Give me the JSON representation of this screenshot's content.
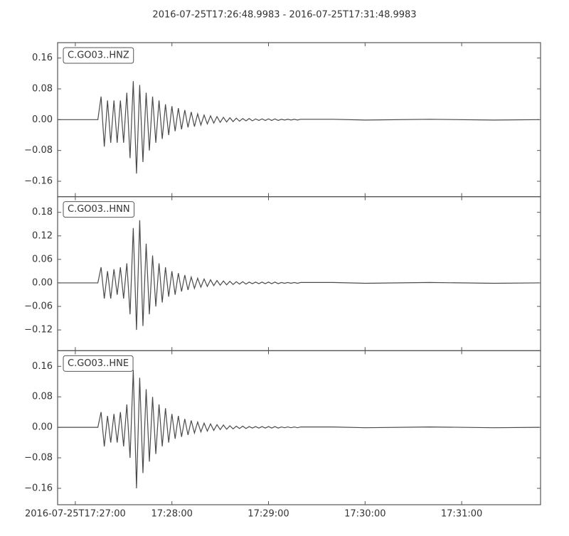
{
  "chart_data": [
    {
      "type": "line",
      "title": "2016-07-25T17:26:48.9983  -  2016-07-25T17:31:48.9983",
      "xlim": [
        62808.9983,
        63108.9983
      ],
      "ylim": [
        -0.2,
        0.2
      ],
      "yticks": [
        {
          "value": -0.16,
          "label": "−0.16"
        },
        {
          "value": -0.08,
          "label": "−0.08"
        },
        {
          "value": 0,
          "label": "0.00"
        },
        {
          "value": 0.08,
          "label": "0.08"
        },
        {
          "value": 0.16,
          "label": "0.16"
        }
      ],
      "x": [
        62809,
        62834,
        62836,
        62838,
        62840,
        62842,
        62844,
        62846,
        62848,
        62850,
        62852,
        62854,
        62856,
        62858,
        62860,
        62862,
        62864,
        62866,
        62868,
        62870,
        62872,
        62874,
        62876,
        62878,
        62880,
        62882,
        62884,
        62886,
        62888,
        62890,
        62892,
        62894,
        62896,
        62898,
        62900,
        62902,
        62904,
        62906,
        62908,
        62910,
        62912,
        62914,
        62916,
        62918,
        62920,
        62922,
        62924,
        62926,
        62928,
        62930,
        62932,
        62934,
        62936,
        62938,
        62940,
        62942,
        62944,
        62946,
        62948,
        62950,
        62952,
        62954,
        62956,
        62958,
        62960,
        62980,
        63000,
        63040,
        63080,
        63108
      ],
      "series": [
        {
          "name": "C.GO03..HNZ",
          "color": "#4a4a4a",
          "values": [
            0,
            0,
            0.06,
            -0.07,
            0.05,
            -0.06,
            0.05,
            -0.06,
            0.05,
            -0.06,
            0.07,
            -0.1,
            0.1,
            -0.14,
            0.09,
            -0.11,
            0.07,
            -0.08,
            0.06,
            -0.06,
            0.05,
            -0.05,
            0.04,
            -0.04,
            0.035,
            -0.03,
            0.03,
            -0.025,
            0.025,
            -0.02,
            0.02,
            -0.018,
            0.015,
            -0.014,
            0.012,
            -0.011,
            0.01,
            -0.009,
            0.008,
            -0.007,
            0.006,
            -0.006,
            0.005,
            -0.005,
            0.004,
            -0.004,
            0.003,
            -0.003,
            0.003,
            -0.003,
            0.002,
            -0.002,
            0.002,
            -0.002,
            0.002,
            -0.002,
            0.002,
            -0.002,
            0.001,
            -0.001,
            0.001,
            -0.001,
            0.001,
            -0.001,
            0.001,
            0.001,
            -0.001,
            0.001,
            -0.001,
            0
          ]
        }
      ]
    },
    {
      "type": "line",
      "xlim": [
        62808.9983,
        63108.9983
      ],
      "ylim": [
        -0.173,
        0.22
      ],
      "yticks": [
        {
          "value": -0.12,
          "label": "−0.12"
        },
        {
          "value": -0.06,
          "label": "−0.06"
        },
        {
          "value": 0,
          "label": "0.00"
        },
        {
          "value": 0.06,
          "label": "0.06"
        },
        {
          "value": 0.12,
          "label": "0.12"
        },
        {
          "value": 0.18,
          "label": "0.18"
        }
      ],
      "x": [
        62809,
        62834,
        62836,
        62838,
        62840,
        62842,
        62844,
        62846,
        62848,
        62850,
        62852,
        62854,
        62856,
        62858,
        62860,
        62862,
        62864,
        62866,
        62868,
        62870,
        62872,
        62874,
        62876,
        62878,
        62880,
        62882,
        62884,
        62886,
        62888,
        62890,
        62892,
        62894,
        62896,
        62898,
        62900,
        62902,
        62904,
        62906,
        62908,
        62910,
        62912,
        62914,
        62916,
        62918,
        62920,
        62922,
        62924,
        62926,
        62928,
        62930,
        62932,
        62934,
        62936,
        62938,
        62940,
        62942,
        62944,
        62946,
        62948,
        62950,
        62952,
        62954,
        62956,
        62958,
        62960,
        62980,
        63000,
        63040,
        63080,
        63108
      ],
      "series": [
        {
          "name": "C.GO03..HNN",
          "color": "#4a4a4a",
          "values": [
            0,
            0,
            0.04,
            -0.04,
            0.03,
            -0.04,
            0.035,
            -0.03,
            0.04,
            -0.04,
            0.05,
            -0.08,
            0.14,
            -0.12,
            0.16,
            -0.11,
            0.1,
            -0.08,
            0.07,
            -0.06,
            0.05,
            -0.05,
            0.04,
            -0.035,
            0.03,
            -0.03,
            0.025,
            -0.022,
            0.02,
            -0.018,
            0.015,
            -0.014,
            0.012,
            -0.011,
            0.01,
            -0.009,
            0.008,
            -0.007,
            0.006,
            -0.006,
            0.005,
            -0.005,
            0.004,
            -0.004,
            0.003,
            -0.003,
            0.003,
            -0.003,
            0.002,
            -0.002,
            0.002,
            -0.002,
            0.002,
            -0.002,
            0.002,
            -0.002,
            0.002,
            -0.002,
            0.001,
            -0.001,
            0.001,
            -0.001,
            0.001,
            -0.001,
            0.001,
            0.001,
            -0.001,
            0.001,
            -0.001,
            0
          ]
        }
      ]
    },
    {
      "type": "line",
      "xlim": [
        62808.9983,
        63108.9983
      ],
      "ylim": [
        -0.203,
        0.201
      ],
      "yticks": [
        {
          "value": -0.16,
          "label": "−0.16"
        },
        {
          "value": -0.08,
          "label": "−0.08"
        },
        {
          "value": 0,
          "label": "0.00"
        },
        {
          "value": 0.08,
          "label": "0.08"
        },
        {
          "value": 0.16,
          "label": "0.16"
        }
      ],
      "xticks": [
        {
          "value": 62820,
          "label": "2016-07-25T17:27:00"
        },
        {
          "value": 62880,
          "label": "17:28:00"
        },
        {
          "value": 62940,
          "label": "17:29:00"
        },
        {
          "value": 63000,
          "label": "17:30:00"
        },
        {
          "value": 63060,
          "label": "17:31:00"
        }
      ],
      "x": [
        62809,
        62834,
        62836,
        62838,
        62840,
        62842,
        62844,
        62846,
        62848,
        62850,
        62852,
        62854,
        62856,
        62858,
        62860,
        62862,
        62864,
        62866,
        62868,
        62870,
        62872,
        62874,
        62876,
        62878,
        62880,
        62882,
        62884,
        62886,
        62888,
        62890,
        62892,
        62894,
        62896,
        62898,
        62900,
        62902,
        62904,
        62906,
        62908,
        62910,
        62912,
        62914,
        62916,
        62918,
        62920,
        62922,
        62924,
        62926,
        62928,
        62930,
        62932,
        62934,
        62936,
        62938,
        62940,
        62942,
        62944,
        62946,
        62948,
        62950,
        62952,
        62954,
        62956,
        62958,
        62960,
        62980,
        63000,
        63040,
        63080,
        63108
      ],
      "series": [
        {
          "name": "C.GO03..HNE",
          "color": "#4a4a4a",
          "values": [
            0,
            0,
            0.04,
            -0.05,
            0.03,
            -0.04,
            0.035,
            -0.04,
            0.04,
            -0.05,
            0.06,
            -0.08,
            0.15,
            -0.16,
            0.13,
            -0.12,
            0.1,
            -0.09,
            0.08,
            -0.07,
            0.06,
            -0.05,
            0.05,
            -0.04,
            0.035,
            -0.03,
            0.03,
            -0.025,
            0.022,
            -0.02,
            0.018,
            -0.015,
            0.014,
            -0.012,
            0.011,
            -0.01,
            0.009,
            -0.008,
            0.007,
            -0.006,
            0.006,
            -0.005,
            0.004,
            -0.004,
            0.003,
            -0.003,
            0.003,
            -0.003,
            0.002,
            -0.002,
            0.002,
            -0.002,
            0.002,
            -0.002,
            0.002,
            -0.002,
            0.002,
            -0.002,
            0.001,
            -0.001,
            0.001,
            -0.001,
            0.001,
            -0.001,
            0.001,
            0.001,
            -0.001,
            0.001,
            -0.001,
            0
          ]
        }
      ]
    }
  ]
}
